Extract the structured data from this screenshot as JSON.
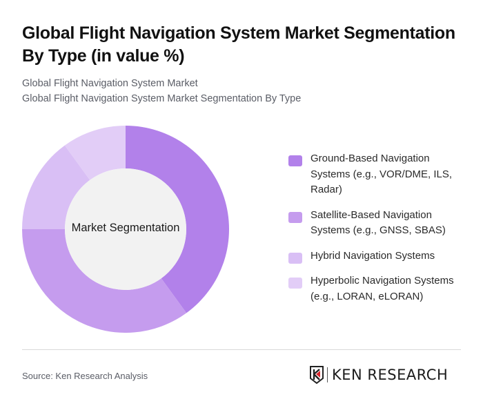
{
  "header": {
    "title": "Global Flight Navigation System Market Segmentation By Type (in value %)",
    "subtitle_line1": "Global Flight Navigation System Market",
    "subtitle_line2": "Global Flight Navigation System Market Segmentation By Type"
  },
  "chart": {
    "center_label": "Market Segmentation"
  },
  "legend": [
    {
      "label": "Ground-Based Navigation Systems (e.g., VOR/DME, ILS, Radar)",
      "color": "#b281ea"
    },
    {
      "label": "Satellite-Based Navigation Systems (e.g., GNSS, SBAS)",
      "color": "#c59cee"
    },
    {
      "label": "Hybrid Navigation Systems",
      "color": "#d9bff5"
    },
    {
      "label": "Hyperbolic Navigation Systems (e.g., LORAN, eLORAN)",
      "color": "#e2cdf7"
    }
  ],
  "footer": {
    "source": "Source: Ken Research Analysis",
    "logo_text": "KEN RESEARCH"
  },
  "chart_data": {
    "type": "pie",
    "subtype": "donut",
    "title": "Global Flight Navigation System Market Segmentation By Type (in value %)",
    "center_label": "Market Segmentation",
    "categories": [
      "Ground-Based Navigation Systems (e.g., VOR/DME, ILS, Radar)",
      "Satellite-Based Navigation Systems (e.g., GNSS, SBAS)",
      "Hybrid Navigation Systems",
      "Hyperbolic Navigation Systems (e.g., LORAN, eLORAN)"
    ],
    "values": [
      40,
      35,
      15,
      10
    ],
    "colors": [
      "#b281ea",
      "#c59cee",
      "#d9bff5",
      "#e2cdf7"
    ],
    "legend_position": "right",
    "data_labels": false
  }
}
